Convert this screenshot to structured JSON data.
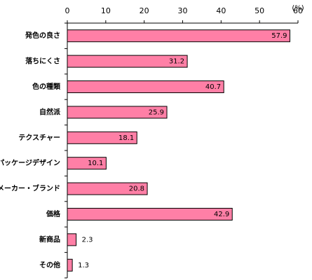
{
  "chart_data": {
    "type": "bar",
    "orientation": "horizontal",
    "categories": [
      "発色の良さ",
      "落ちにくさ",
      "色の種類",
      "自然派",
      "テクスチャー",
      "パッケージデザイン",
      "メーカー・ブランド",
      "価格",
      "新商品",
      "その他"
    ],
    "values": [
      57.9,
      31.2,
      40.7,
      25.9,
      18.1,
      10.1,
      20.8,
      42.9,
      2.3,
      1.3
    ],
    "value_labels": [
      "57.9",
      "31.2",
      "40.7",
      "25.9",
      "18.1",
      "10.1",
      "20.8",
      "42.9",
      "2.3",
      "1.3"
    ],
    "xlim": [
      0,
      60
    ],
    "x_ticks": [
      0,
      10,
      20,
      30,
      40,
      50,
      60
    ],
    "x_tick_labels": [
      "0",
      "10",
      "20",
      "30",
      "40",
      "50",
      "60"
    ],
    "unit_label": "(%)",
    "bar_color": "#ff7fa6",
    "bar_edge_color": "#000000",
    "grid": false,
    "title": "",
    "xlabel": "",
    "ylabel": ""
  }
}
